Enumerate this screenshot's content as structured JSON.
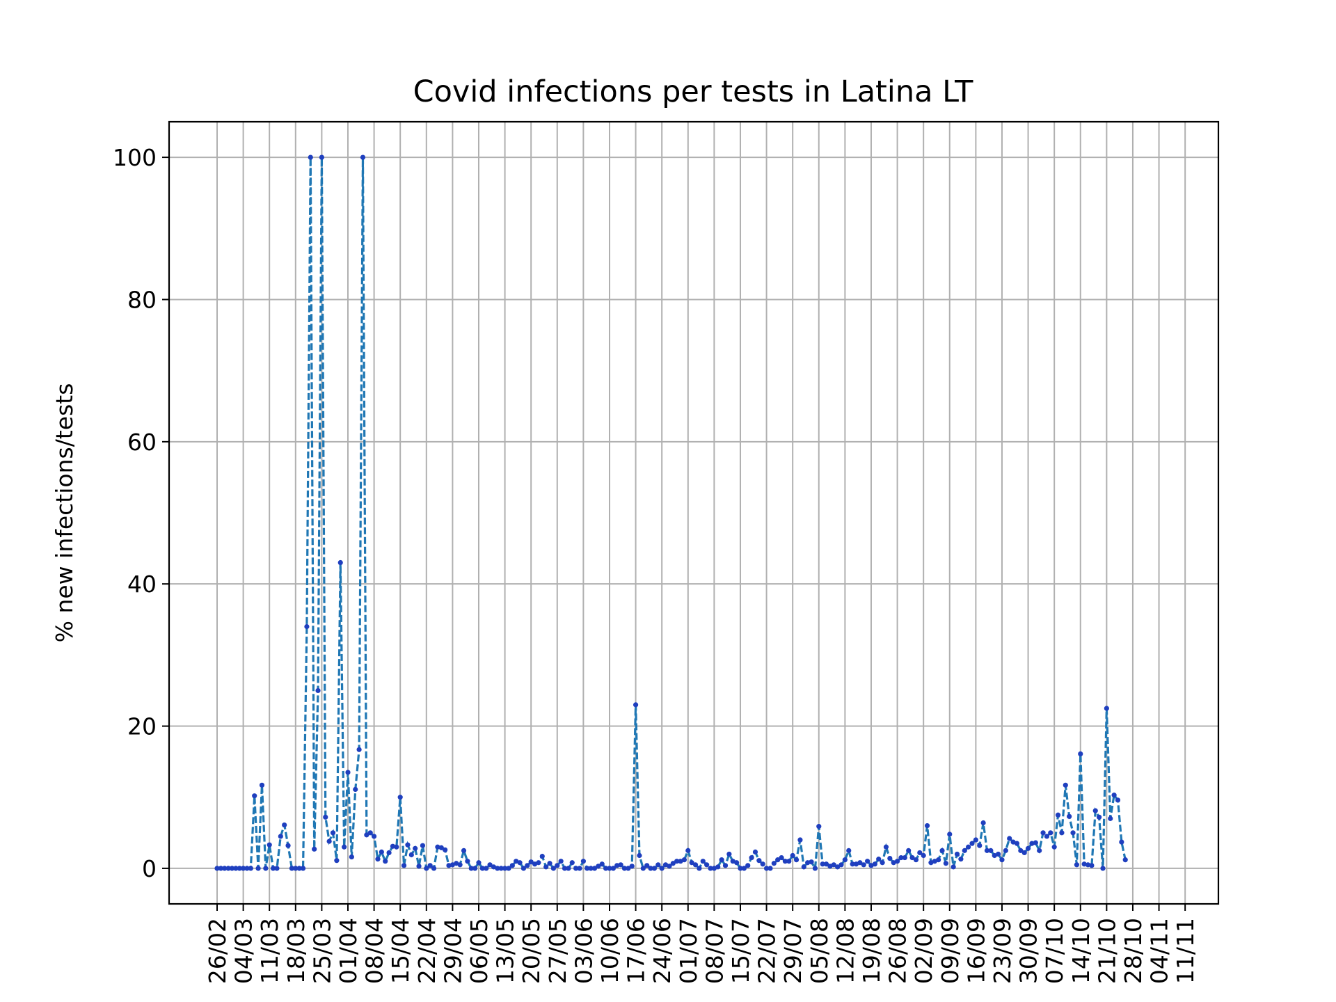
{
  "chart_data": {
    "type": "line",
    "title": "Covid infections per tests in Latina LT",
    "xlabel": "",
    "ylabel": "% new infections/tests",
    "ylim": [
      -5,
      105
    ],
    "yticks": [
      0,
      20,
      40,
      60,
      80,
      100
    ],
    "grid": true,
    "legend": "none",
    "colors": {
      "line": "#1f77b4",
      "marker": "#1f3fbf"
    },
    "start_date": "2020-02-26",
    "x_ticks": [
      "26/02",
      "04/03",
      "11/03",
      "18/03",
      "25/03",
      "01/04",
      "08/04",
      "15/04",
      "22/04",
      "29/04",
      "06/05",
      "13/05",
      "20/05",
      "27/05",
      "03/06",
      "10/06",
      "17/06",
      "24/06",
      "01/07",
      "08/07",
      "15/07",
      "22/07",
      "29/07",
      "05/08",
      "12/08",
      "19/08",
      "26/08",
      "02/09",
      "09/09",
      "16/09",
      "23/09",
      "30/09",
      "07/10",
      "14/10",
      "21/10",
      "28/10",
      "04/11",
      "11/11"
    ],
    "series": [
      {
        "name": "",
        "values": [
          0,
          0,
          0,
          0,
          0,
          0,
          0,
          0,
          0,
          0,
          10.2,
          0,
          11.7,
          0,
          3.3,
          0,
          0,
          4.5,
          6.1,
          3.2,
          0,
          0,
          0,
          0,
          34,
          100,
          2.7,
          25,
          100,
          7.2,
          3.8,
          5,
          1.1,
          43,
          3,
          13.5,
          1.6,
          11.1,
          16.7,
          100,
          4.7,
          5,
          4.5,
          1.3,
          2.3,
          1,
          2.2,
          3.1,
          3,
          10,
          0.4,
          3.3,
          1.9,
          2.8,
          0.3,
          3.2,
          0,
          0.4,
          0,
          3,
          2.9,
          2.6,
          0.4,
          0.5,
          0.7,
          0.5,
          2.5,
          1,
          0,
          0,
          0.8,
          0,
          0,
          0.5,
          0.2,
          0,
          0,
          0,
          0,
          0.4,
          1,
          0.8,
          0,
          0.4,
          0.9,
          0.6,
          0.8,
          1.7,
          0.2,
          0.7,
          0,
          0.4,
          1,
          0,
          0,
          0.8,
          0,
          0,
          1,
          0,
          0,
          0,
          0.3,
          0.6,
          0,
          0,
          0,
          0.4,
          0.5,
          0,
          0,
          0.3,
          23,
          1.8,
          0,
          0.4,
          0,
          0,
          0.5,
          0,
          0.5,
          0.3,
          0.7,
          1,
          1,
          1.2,
          2.5,
          0.8,
          0.5,
          0,
          1,
          0.5,
          0,
          0,
          0.2,
          1.2,
          0.4,
          2,
          1,
          0.8,
          0,
          0,
          0.4,
          1.5,
          2.3,
          1.1,
          0.6,
          0,
          0,
          0.7,
          1.2,
          1.5,
          1,
          1,
          1.8,
          1.2,
          4,
          0.2,
          0.8,
          0.9,
          0,
          5.9,
          0.6,
          0.6,
          0.3,
          0.5,
          0.2,
          0.5,
          1.2,
          2.5,
          0.6,
          0.6,
          0.8,
          0.5,
          1,
          0.4,
          0.6,
          1.3,
          0.8,
          3,
          1.4,
          0.8,
          1,
          1.5,
          1.5,
          2.5,
          1.5,
          1.2,
          2.2,
          1.8,
          6,
          0.8,
          1,
          1.2,
          2.5,
          0.7,
          4.8,
          0.2,
          2,
          1.3,
          2.5,
          3,
          3.5,
          4,
          3.2,
          6.4,
          2.5,
          2.5,
          1.8,
          2,
          1.2,
          2.5,
          4.2,
          3.7,
          3.5,
          2.5,
          2.2,
          2.8,
          3.5,
          3.6,
          2.5,
          5,
          4.5,
          5,
          3,
          7.5,
          5,
          11.7,
          7.3,
          5,
          0.5,
          16.1,
          0.6,
          0.5,
          0.4,
          8.1,
          7.2,
          0,
          22.5,
          7,
          10.3,
          9.6,
          3.7,
          1.2
        ]
      }
    ]
  }
}
